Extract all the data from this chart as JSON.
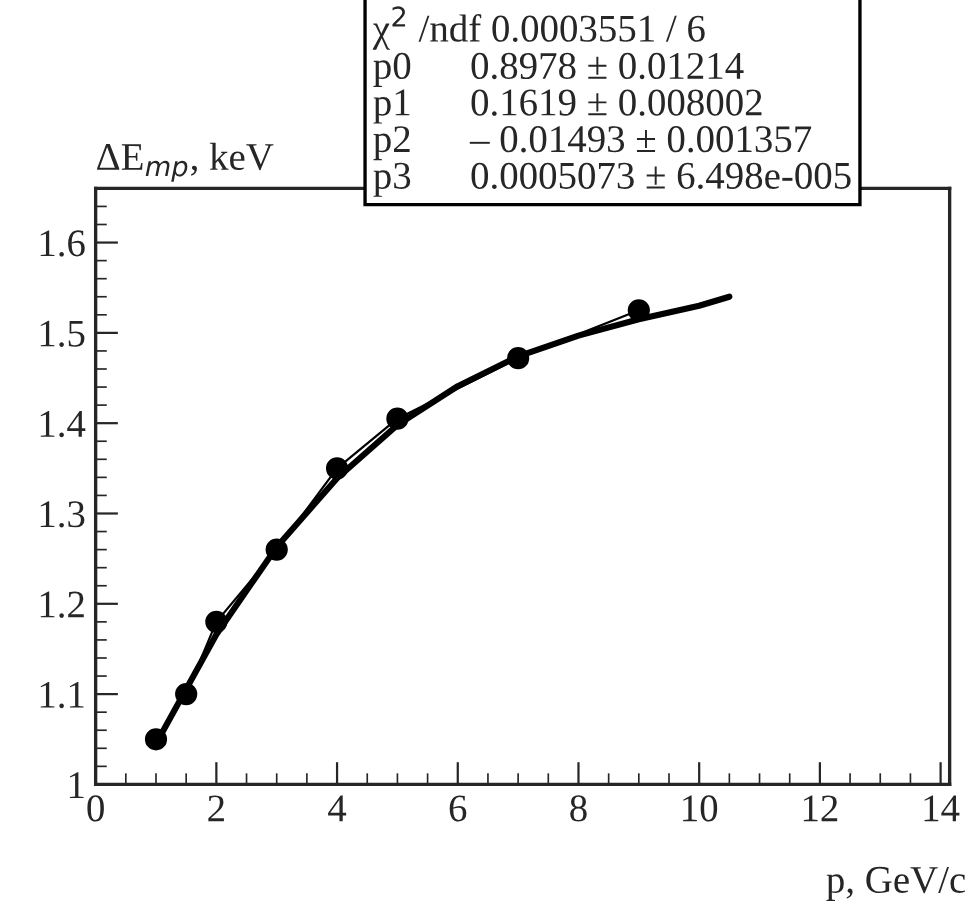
{
  "chart_data": {
    "type": "line",
    "xlabel": "p, GeV/c",
    "ylabel": "ΔE$_{mp}$, keV",
    "series": [
      {
        "color": "#000000",
        "x": [
          1,
          1.5,
          2,
          3,
          4,
          5,
          7,
          9
        ],
        "values": [
          1.05,
          1.1,
          1.18,
          1.26,
          1.35,
          1.405,
          1.472,
          1.525
        ],
        "marker": "circle",
        "line_style": "solid"
      },
      {
        "color": "#000000",
        "marker": "none",
        "x": [
          1,
          2,
          3,
          4,
          5,
          6,
          7,
          8,
          9,
          10,
          10.5
        ],
        "values": [
          1.045,
          1.166,
          1.263,
          1.339,
          1.398,
          1.441,
          1.474,
          1.497,
          1.515,
          1.53,
          1.54
        ]
      }
    ],
    "xlim": [
      0,
      14.15
    ],
    "ylim": [
      1,
      1.66
    ],
    "xticks": [
      0,
      2,
      4,
      6,
      8,
      10,
      12,
      14
    ],
    "yticks": [
      1,
      1.1,
      1.2,
      1.3,
      1.4,
      1.5,
      1.6
    ],
    "grid": false,
    "annotations": [
      "χ$^{2}$ /ndf 0.0003551 / 6",
      "p0      0.8978 ± 0.01214",
      "p1      0.1619 ± 0.008002",
      "p2      – 0.01493 ± 0.001357",
      "p3      0.0005073 ± 6.498e-005"
    ]
  }
}
